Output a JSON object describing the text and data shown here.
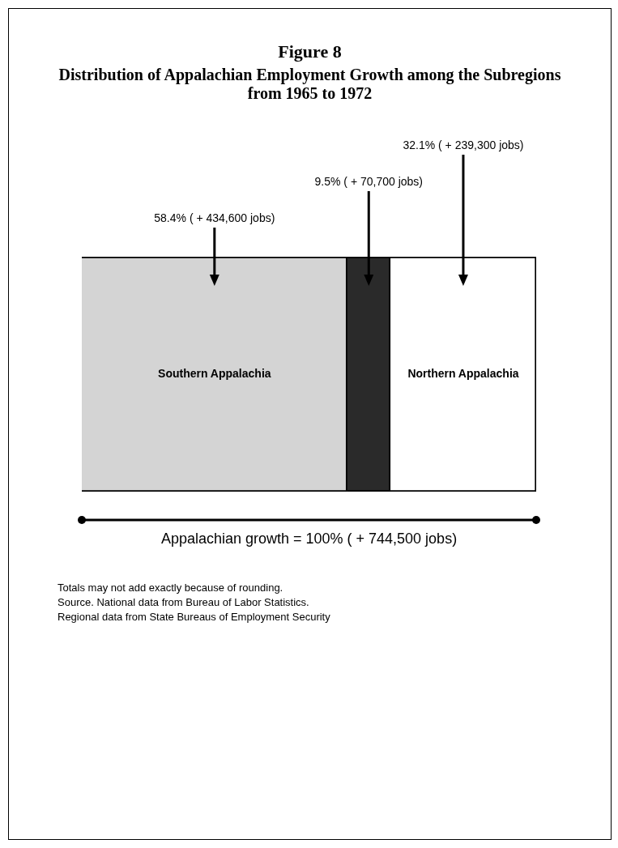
{
  "chart_data": {
    "type": "bar",
    "title": "Figure 8",
    "subtitle": "Distribution of Appalachian Employment Growth among the Subregions from 1965 to 1972",
    "orientation": "horizontal",
    "stacked": true,
    "categories": [
      null
    ],
    "xlim": [
      0,
      100
    ],
    "tick_labels": false,
    "series": [
      {
        "name": "Southern Appalachia",
        "color": "#d4d4d4",
        "values": [
          58.4
        ],
        "value_labels": [
          "58.4% ( + 434,600 jobs)"
        ]
      },
      {
        "color": "#2a2a2a",
        "values": [
          9.5
        ],
        "value_labels": [
          "9.5% ( + 70,700 jobs)"
        ]
      },
      {
        "name": "Northern Appalachia",
        "color": "#ffffff",
        "values": [
          32.1
        ],
        "value_labels": [
          "32.1% ( + 239,300 jobs)"
        ]
      }
    ],
    "totals": [
      "Appalachian growth = 100% ( + 744,500 jobs)"
    ],
    "annotations": [
      "Totals may not add exactly because of rounding.",
      "Source. National data from Bureau of Labor Statistics.",
      "Regional data from State Bureaus of Employment Security"
    ]
  }
}
